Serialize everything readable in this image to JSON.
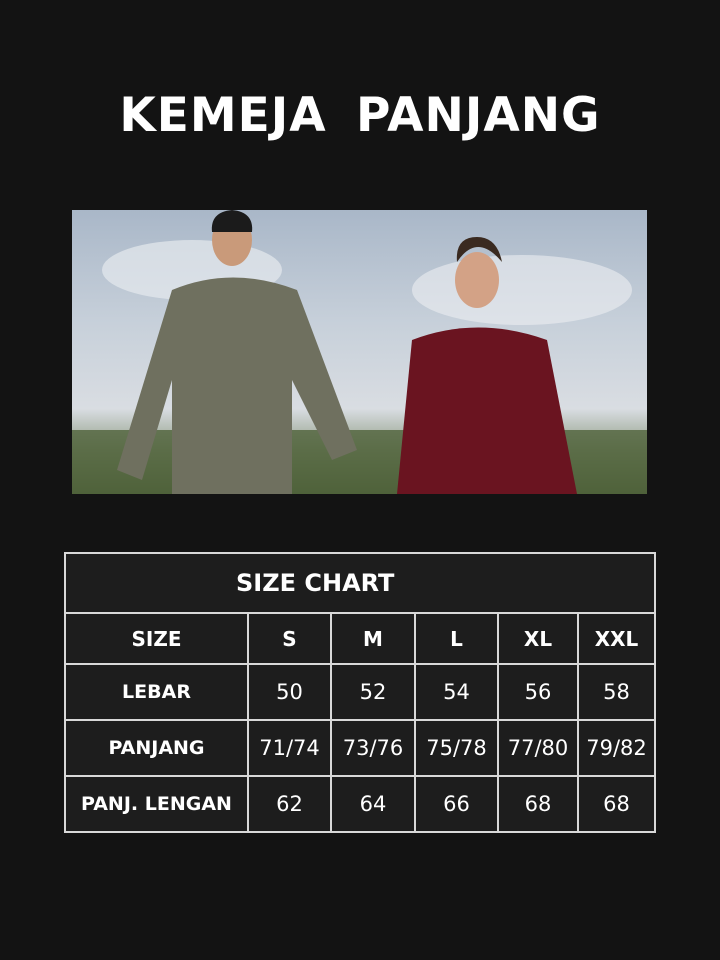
{
  "title": "KEMEJA  PANJANG",
  "photo": {
    "description_icon": "photo-two-men-in-shirts"
  },
  "size_chart": {
    "caption": "SIZE CHART",
    "headers": [
      "SIZE",
      "S",
      "M",
      "L",
      "XL",
      "XXL"
    ],
    "rows": [
      {
        "label": "LEBAR",
        "values": [
          "50",
          "52",
          "54",
          "56",
          "58"
        ]
      },
      {
        "label": "PANJANG",
        "values": [
          "71/74",
          "73/76",
          "75/78",
          "77/80",
          "79/82"
        ]
      },
      {
        "label": "PANJ. LENGAN",
        "values": [
          "62",
          "64",
          "66",
          "68",
          "68"
        ]
      }
    ]
  },
  "colors": {
    "background": "#131313",
    "table_bg": "#1d1d1d",
    "border": "#d8d8d8"
  }
}
